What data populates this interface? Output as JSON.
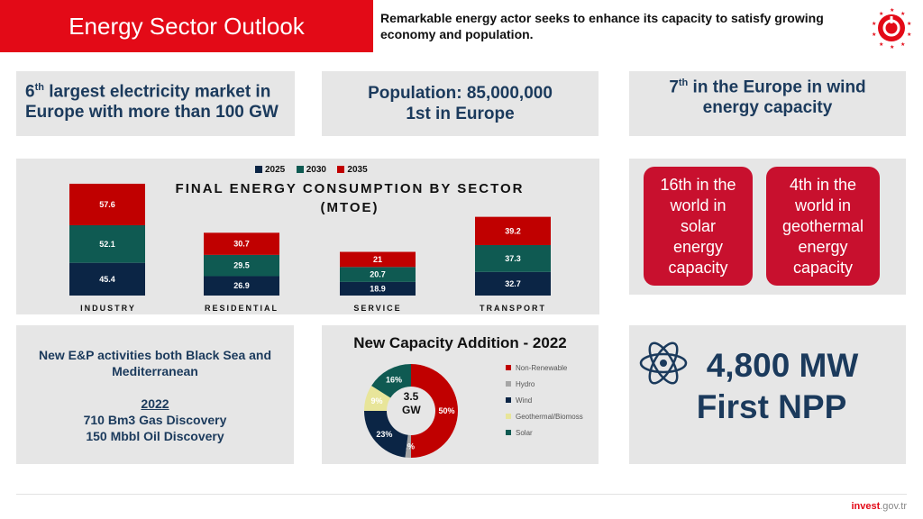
{
  "header": {
    "title": "Energy Sector Outlook",
    "subtitle": "Remarkable energy actor seeks to enhance its capacity to satisfy growing economy and population."
  },
  "facts": {
    "electricity": {
      "sup": "th",
      "num": "6",
      "text": " largest electricity market in Europe with more than 100 GW"
    },
    "population": {
      "line1": "Population: 85,000,000",
      "line2": "1st in Europe"
    },
    "wind": {
      "num": "7",
      "sup": "th",
      "text": " in the Europe in wind energy capacity"
    }
  },
  "cards": {
    "solar": "16th in the world in solar energy capacity",
    "geothermal": "4th in the world in geothermal energy capacity"
  },
  "exploration": {
    "heading": "New E&P activities both Black Sea and Mediterranean",
    "year": "2022",
    "gas": "710 Bm3 Gas Discovery",
    "oil": "150 Mbbl Oil Discovery"
  },
  "npp": {
    "line1": "4,800 MW",
    "line2": "First NPP"
  },
  "footer": {
    "brand": "invest",
    "domain": ".gov.tr"
  },
  "colors": {
    "c2025": "#0b2545",
    "c2030": "#0f5a52",
    "c2035": "#c00000"
  },
  "chart_data": [
    {
      "type": "bar",
      "stacked": true,
      "title": "FINAL ENERGY CONSUMPTION BY SECTOR (MTOE)",
      "categories": [
        "INDUSTRY",
        "RESIDENTIAL",
        "SERVICE",
        "TRANSPORT"
      ],
      "series": [
        {
          "name": "2025",
          "color": "#0b2545",
          "values": [
            45.4,
            26.9,
            18.9,
            32.7
          ]
        },
        {
          "name": "2030",
          "color": "#0f5a52",
          "values": [
            52.1,
            29.5,
            20.7,
            37.3
          ]
        },
        {
          "name": "2035",
          "color": "#c00000",
          "values": [
            57.6,
            30.7,
            21,
            39.2
          ]
        }
      ],
      "legend": "top"
    },
    {
      "type": "pie",
      "donut": true,
      "title": "New Capacity Addition - 2022",
      "center_label": "3.5 GW",
      "labels": [
        "Non-Renewable",
        "Hydro",
        "Wind",
        "Geothermal/Biomoss",
        "Solar"
      ],
      "values": [
        50,
        2,
        23,
        9,
        16
      ],
      "value_labels": [
        "50%",
        "2%",
        "23%",
        "9%",
        "16%"
      ],
      "colors": [
        "#c00000",
        "#a6a6a6",
        "#0b2545",
        "#e8e59a",
        "#0f5a52"
      ],
      "legend": "right"
    }
  ]
}
